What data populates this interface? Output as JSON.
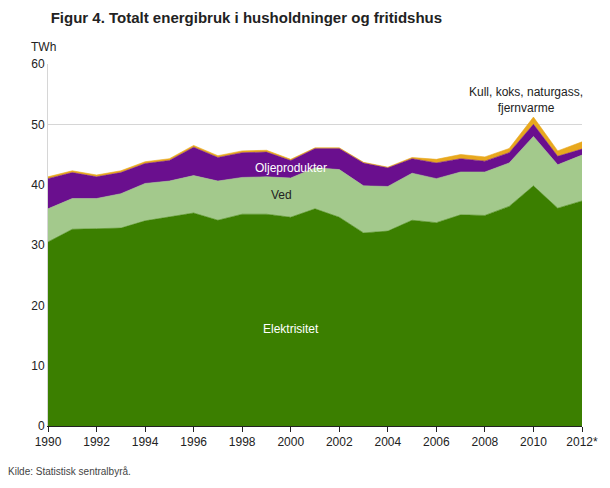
{
  "chart_data": {
    "type": "area",
    "stacked": true,
    "title": "Figur 4. Totalt energibruk i husholdninger og fritidshus",
    "y_label": "TWh",
    "source": "Kilde: Statistisk sentralbyrå.",
    "x": [
      1990,
      1991,
      1992,
      1993,
      1994,
      1995,
      1996,
      1997,
      1998,
      1999,
      2000,
      2001,
      2002,
      2003,
      2004,
      2005,
      2006,
      2007,
      2008,
      2009,
      2010,
      2011,
      2012
    ],
    "xlim": [
      1990,
      2012
    ],
    "xticks": [
      1990,
      1992,
      1994,
      1996,
      1998,
      2000,
      2002,
      2004,
      2006,
      2008,
      2010,
      {
        "value": 2012,
        "label": "2012*"
      }
    ],
    "ylim": [
      0,
      60
    ],
    "yticks": [
      0,
      10,
      20,
      30,
      40,
      50,
      60
    ],
    "grid": true,
    "series": [
      {
        "name": "Elektrisitet",
        "color": "#3b7f00",
        "values": [
          30.5,
          32.6,
          32.7,
          32.8,
          34.0,
          34.6,
          35.3,
          34.1,
          35.1,
          35.1,
          34.6,
          36.0,
          34.6,
          32.0,
          32.3,
          34.1,
          33.7,
          35.0,
          34.9,
          36.4,
          39.8,
          36.1,
          37.3
        ]
      },
      {
        "name": "Ved",
        "color": "#a3c98c",
        "values": [
          5.5,
          5.1,
          5.0,
          5.7,
          6.2,
          6.0,
          6.2,
          6.5,
          6.1,
          6.2,
          6.5,
          6.8,
          7.9,
          7.8,
          7.4,
          7.8,
          7.3,
          7.1,
          7.2,
          7.2,
          8.2,
          7.2,
          7.6
        ]
      },
      {
        "name": "Oljeprodukter",
        "color": "#6a0f8e",
        "values": [
          5.0,
          4.3,
          3.6,
          3.5,
          3.3,
          3.4,
          4.7,
          3.9,
          4.1,
          4.1,
          2.9,
          3.2,
          3.5,
          3.8,
          3.1,
          2.4,
          2.6,
          2.2,
          1.8,
          1.7,
          2.0,
          1.4,
          1.0
        ]
      },
      {
        "name": "Kull, koks, naturgass,\nfjernvarme",
        "color": "#e8a81e",
        "values": [
          0.3,
          0.3,
          0.3,
          0.3,
          0.3,
          0.3,
          0.3,
          0.3,
          0.3,
          0.3,
          0.2,
          0.1,
          0.1,
          0.1,
          0.1,
          0.2,
          0.6,
          0.7,
          0.7,
          0.7,
          1.2,
          0.9,
          1.2
        ]
      }
    ]
  }
}
